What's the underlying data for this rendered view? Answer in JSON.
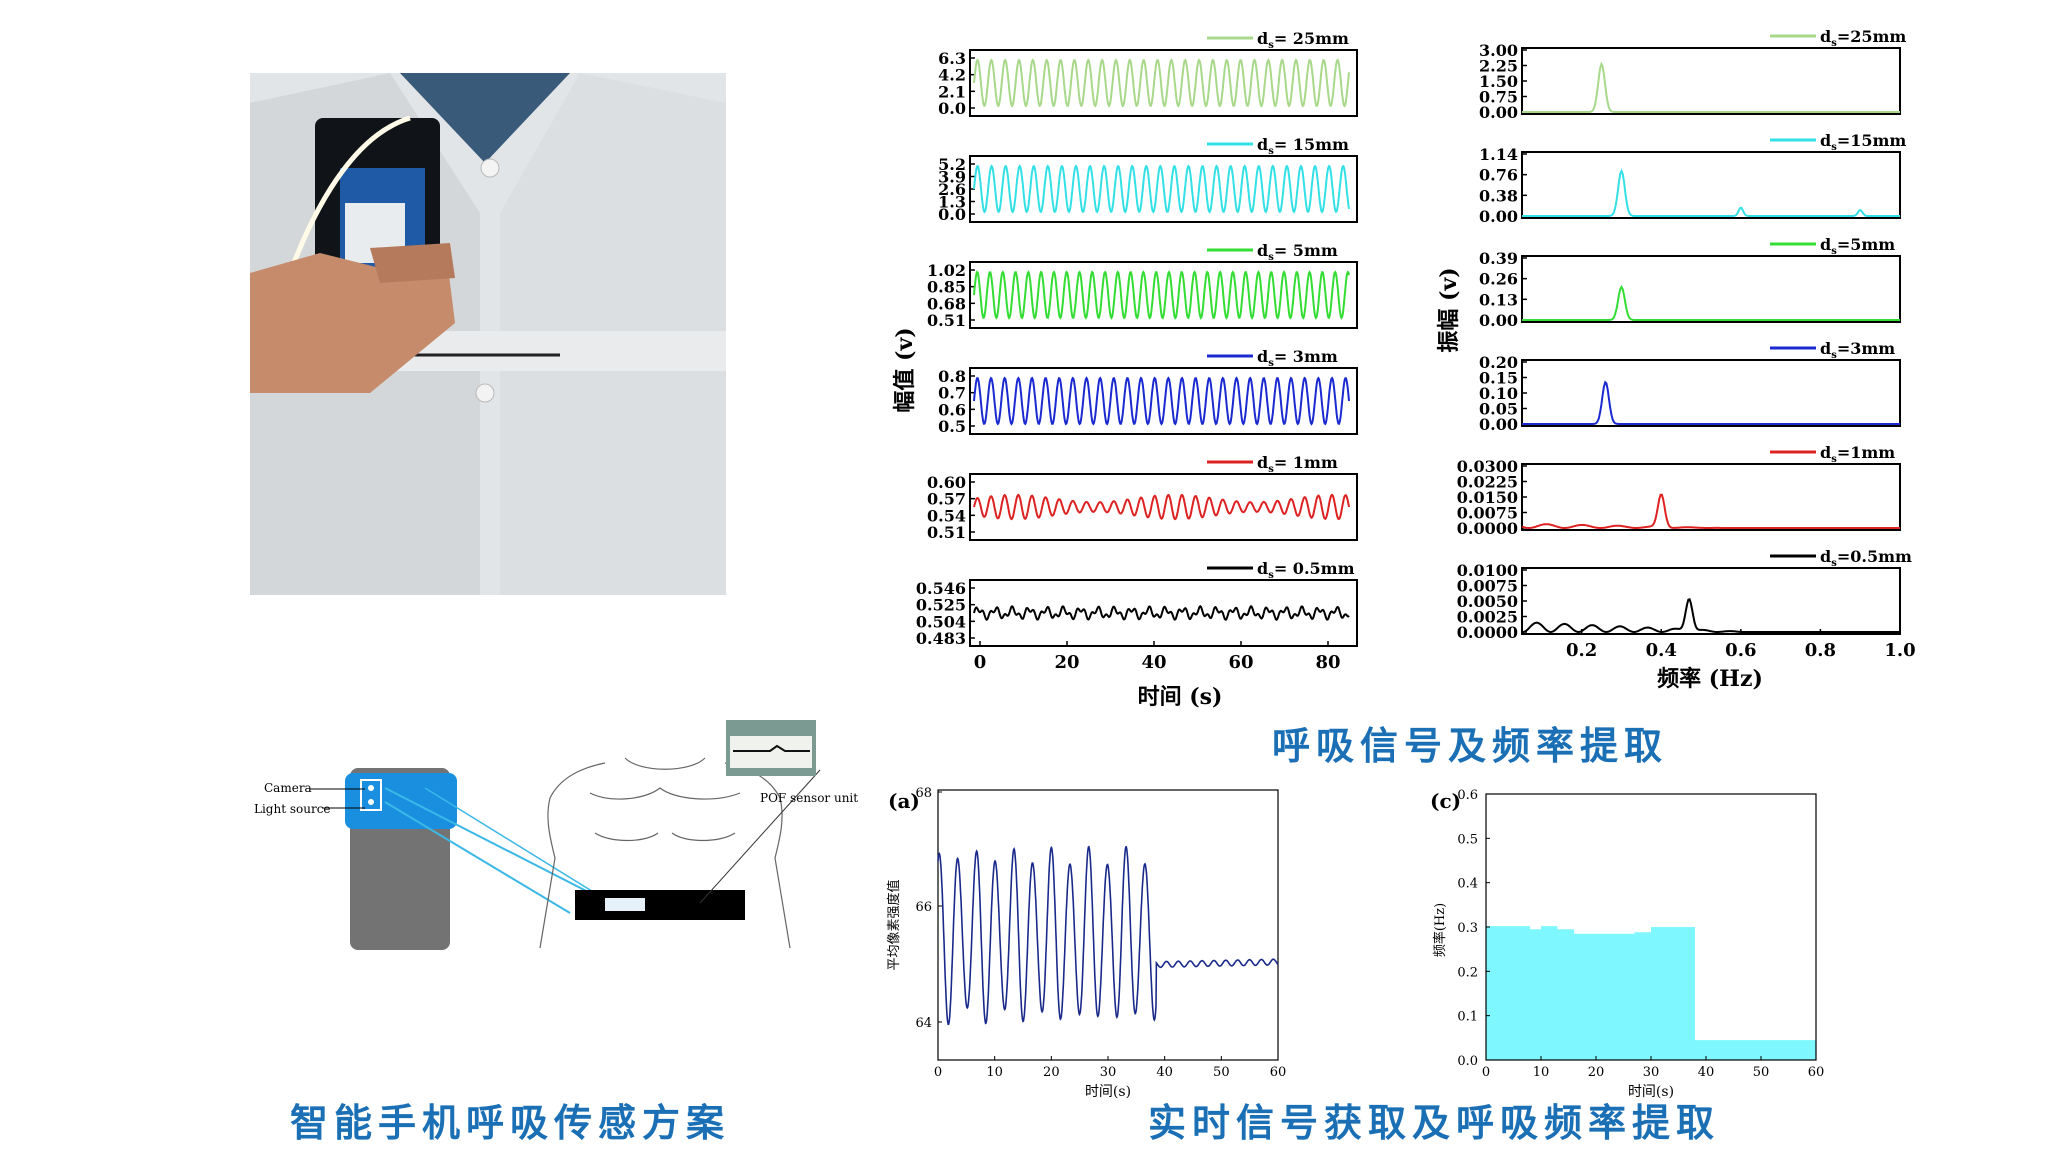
{
  "captions": {
    "scheme": "智能手机呼吸传感方案",
    "extraction": "呼吸信号及频率提取",
    "realtime": "实时信号获取及呼吸频率提取"
  },
  "scheme_diagram": {
    "camera_label": "Camera",
    "light_label": "Light source",
    "pof_label": "POF sensor unit"
  },
  "time_panel": {
    "y_label": "幅值 (v)",
    "x_label": "时间 (s)",
    "x_ticks": [
      "0",
      "20",
      "40",
      "60",
      "80"
    ],
    "rows": [
      {
        "legend": "d",
        "legend_sub": "s",
        "legend_tail": "= 25mm",
        "color": "#a8d88a",
        "yticks": [
          "6.3",
          "4.2",
          "2.1",
          "0.0"
        ]
      },
      {
        "legend": "d",
        "legend_sub": "s",
        "legend_tail": "= 15mm",
        "color": "#33e0e6",
        "yticks": [
          "5.2",
          "3.9",
          "2.6",
          "1.3",
          "0.0"
        ]
      },
      {
        "legend": "d",
        "legend_sub": "s",
        "legend_tail": "= 5mm",
        "color": "#33dd33",
        "yticks": [
          "1.02",
          "0.85",
          "0.68",
          "0.51"
        ]
      },
      {
        "legend": "d",
        "legend_sub": "s",
        "legend_tail": "= 3mm",
        "color": "#1a2ad0",
        "yticks": [
          "0.8",
          "0.7",
          "0.6",
          "0.5"
        ]
      },
      {
        "legend": "d",
        "legend_sub": "s",
        "legend_tail": "= 1mm",
        "color": "#dd2222",
        "yticks": [
          "0.60",
          "0.57",
          "0.54",
          "0.51"
        ]
      },
      {
        "legend": "d",
        "legend_sub": "s",
        "legend_tail": "= 0.5mm",
        "color": "#000000",
        "yticks": [
          "0.546",
          "0.525",
          "0.504",
          "0.483"
        ]
      }
    ]
  },
  "freq_panel": {
    "y_label": "振幅 (v)",
    "x_label": "频率 (Hz)",
    "x_ticks": [
      "0.2",
      "0.4",
      "0.6",
      "0.8",
      "1.0"
    ],
    "rows": [
      {
        "legend": "d",
        "legend_sub": "s",
        "legend_tail": "=25mm",
        "color": "#a8d88a",
        "yticks": [
          "3.00",
          "2.25",
          "1.50",
          "0.75",
          "0.00"
        ]
      },
      {
        "legend": "d",
        "legend_sub": "s",
        "legend_tail": "=15mm",
        "color": "#33e0e6",
        "yticks": [
          "1.14",
          "0.76",
          "0.38",
          "0.00"
        ]
      },
      {
        "legend": "d",
        "legend_sub": "s",
        "legend_tail": "=5mm",
        "color": "#33dd33",
        "yticks": [
          "0.39",
          "0.26",
          "0.13",
          "0.00"
        ]
      },
      {
        "legend": "d",
        "legend_sub": "s",
        "legend_tail": "=3mm",
        "color": "#1a2ad0",
        "yticks": [
          "0.20",
          "0.15",
          "0.10",
          "0.05",
          "0.00"
        ]
      },
      {
        "legend": "d",
        "legend_sub": "s",
        "legend_tail": "=1mm",
        "color": "#dd2222",
        "yticks": [
          "0.0300",
          "0.0225",
          "0.0150",
          "0.0075",
          "0.0000"
        ]
      },
      {
        "legend": "d",
        "legend_sub": "s",
        "legend_tail": "=0.5mm",
        "color": "#000000",
        "yticks": [
          "0.0100",
          "0.0075",
          "0.0050",
          "0.0025",
          "0.0000"
        ]
      }
    ]
  },
  "chart_a": {
    "tag": "(a)",
    "y_label": "平均像素强度值",
    "x_label": "时间(s)",
    "y_ticks": [
      "68",
      "66",
      "64"
    ],
    "x_ticks": [
      "0",
      "10",
      "20",
      "30",
      "40",
      "50",
      "60"
    ]
  },
  "chart_c": {
    "tag": "(c)",
    "y_label": "频率(Hz)",
    "x_label": "时间(s)",
    "y_ticks": [
      "0.6",
      "0.5",
      "0.4",
      "0.3",
      "0.2",
      "0.1",
      "0.0"
    ],
    "x_ticks": [
      "0",
      "10",
      "20",
      "30",
      "40",
      "50",
      "60"
    ]
  },
  "colors": {
    "caption": "#1a6fb5",
    "phone_blue": "#1a8fe0",
    "fiber": "#3bb8e6",
    "fill_c": "#7ff7ff"
  }
}
